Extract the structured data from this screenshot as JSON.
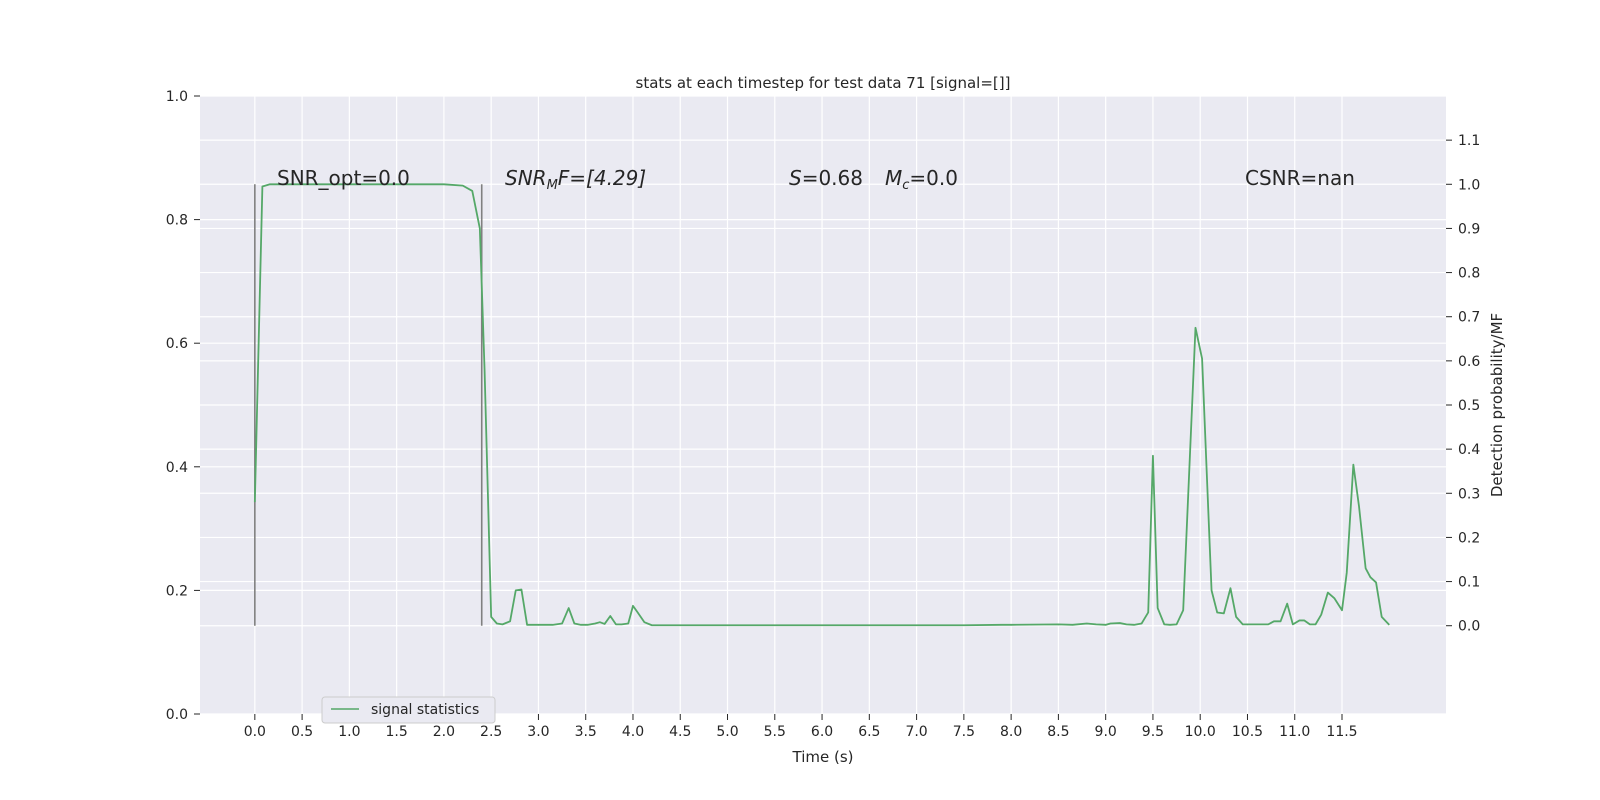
{
  "chart_data": {
    "type": "line",
    "title": "stats at each timestep for test data 71 [signal=[]]",
    "xlabel": "Time (s)",
    "ylabel_left": "",
    "ylabel_right": "Detection probability/MF",
    "xlim": [
      -0.58,
      12.6
    ],
    "ylim_left": [
      0.0,
      1.0
    ],
    "ylim_right": [
      -0.2,
      1.2
    ],
    "x_ticks": [
      "0.0",
      "0.5",
      "1.0",
      "1.5",
      "2.0",
      "2.5",
      "3.0",
      "3.5",
      "4.0",
      "4.5",
      "5.0",
      "5.5",
      "6.0",
      "6.5",
      "7.0",
      "7.5",
      "8.0",
      "8.5",
      "9.0",
      "9.5",
      "10.0",
      "10.5",
      "11.0",
      "11.5"
    ],
    "y_left_ticks": [
      "0.0",
      "0.2",
      "0.4",
      "0.6",
      "0.8",
      "1.0"
    ],
    "y_right_ticks": [
      "0.0",
      "0.1",
      "0.2",
      "0.3",
      "0.4",
      "0.5",
      "0.6",
      "0.7",
      "0.8",
      "0.9",
      "1.0",
      "1.1"
    ],
    "grid": true,
    "legend_placement": "lower-left",
    "annotations": {
      "snr_opt": "SNR_opt=0.0",
      "snr_mf_main": "SNR",
      "snr_mf_sub": "M",
      "snr_mf_rest": "F=[4.29]",
      "s_main": "S",
      "s_rest": "=0.68",
      "mc_main": "M",
      "mc_sub": "c",
      "mc_rest": "=0.0",
      "csnr": "CSNR=nan"
    },
    "vertical_markers": {
      "x": [
        0.0,
        2.4
      ],
      "y_range": [
        0.0,
        1.0
      ],
      "color": "#808080"
    },
    "series": [
      {
        "name": "signal statistics",
        "color": "#55a868",
        "points": [
          [
            0.0,
            0.28
          ],
          [
            0.08,
            0.995
          ],
          [
            0.16,
            1.0
          ],
          [
            0.3,
            1.0
          ],
          [
            0.5,
            1.0
          ],
          [
            0.8,
            1.0
          ],
          [
            1.0,
            1.0
          ],
          [
            1.2,
            1.0
          ],
          [
            1.5,
            1.0
          ],
          [
            1.8,
            1.0
          ],
          [
            2.0,
            1.0
          ],
          [
            2.2,
            0.997
          ],
          [
            2.3,
            0.985
          ],
          [
            2.38,
            0.9
          ],
          [
            2.43,
            0.58
          ],
          [
            2.5,
            0.02
          ],
          [
            2.56,
            0.005
          ],
          [
            2.62,
            0.003
          ],
          [
            2.7,
            0.01
          ],
          [
            2.76,
            0.08
          ],
          [
            2.82,
            0.082
          ],
          [
            2.88,
            0.002
          ],
          [
            3.0,
            0.002
          ],
          [
            3.15,
            0.002
          ],
          [
            3.25,
            0.005
          ],
          [
            3.32,
            0.04
          ],
          [
            3.38,
            0.005
          ],
          [
            3.45,
            0.002
          ],
          [
            3.52,
            0.002
          ],
          [
            3.6,
            0.005
          ],
          [
            3.65,
            0.008
          ],
          [
            3.7,
            0.004
          ],
          [
            3.76,
            0.022
          ],
          [
            3.82,
            0.003
          ],
          [
            3.88,
            0.003
          ],
          [
            3.95,
            0.005
          ],
          [
            4.0,
            0.045
          ],
          [
            4.05,
            0.03
          ],
          [
            4.12,
            0.008
          ],
          [
            4.2,
            0.001
          ],
          [
            4.5,
            0.001
          ],
          [
            5.0,
            0.001
          ],
          [
            5.5,
            0.001
          ],
          [
            6.0,
            0.001
          ],
          [
            6.5,
            0.001
          ],
          [
            7.0,
            0.001
          ],
          [
            7.5,
            0.001
          ],
          [
            7.9,
            0.002
          ],
          [
            8.0,
            0.002
          ],
          [
            8.5,
            0.003
          ],
          [
            8.65,
            0.002
          ],
          [
            8.8,
            0.005
          ],
          [
            8.9,
            0.003
          ],
          [
            9.0,
            0.002
          ],
          [
            9.05,
            0.005
          ],
          [
            9.15,
            0.006
          ],
          [
            9.22,
            0.003
          ],
          [
            9.3,
            0.002
          ],
          [
            9.38,
            0.005
          ],
          [
            9.45,
            0.03
          ],
          [
            9.5,
            0.385
          ],
          [
            9.55,
            0.04
          ],
          [
            9.62,
            0.003
          ],
          [
            9.68,
            0.002
          ],
          [
            9.75,
            0.003
          ],
          [
            9.82,
            0.035
          ],
          [
            9.95,
            0.675
          ],
          [
            10.02,
            0.605
          ],
          [
            10.12,
            0.08
          ],
          [
            10.18,
            0.03
          ],
          [
            10.25,
            0.028
          ],
          [
            10.32,
            0.085
          ],
          [
            10.38,
            0.02
          ],
          [
            10.45,
            0.003
          ],
          [
            10.55,
            0.003
          ],
          [
            10.65,
            0.003
          ],
          [
            10.72,
            0.003
          ],
          [
            10.78,
            0.01
          ],
          [
            10.85,
            0.01
          ],
          [
            10.92,
            0.05
          ],
          [
            10.98,
            0.003
          ],
          [
            11.05,
            0.012
          ],
          [
            11.1,
            0.012
          ],
          [
            11.16,
            0.003
          ],
          [
            11.22,
            0.003
          ],
          [
            11.28,
            0.025
          ],
          [
            11.35,
            0.075
          ],
          [
            11.42,
            0.062
          ],
          [
            11.5,
            0.035
          ],
          [
            11.55,
            0.12
          ],
          [
            11.62,
            0.365
          ],
          [
            11.68,
            0.27
          ],
          [
            11.75,
            0.13
          ],
          [
            11.8,
            0.11
          ],
          [
            11.86,
            0.098
          ],
          [
            11.92,
            0.02
          ],
          [
            12.0,
            0.002
          ]
        ]
      }
    ]
  }
}
